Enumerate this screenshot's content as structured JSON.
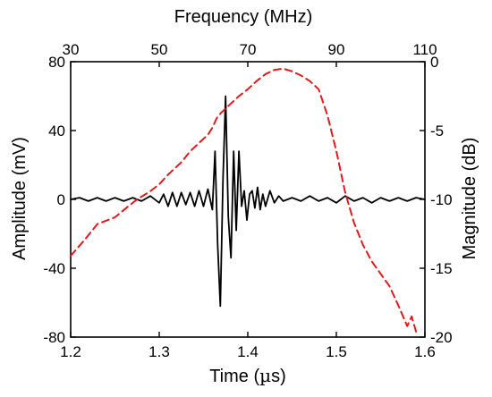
{
  "chart_data": {
    "type": "line",
    "xlabel_bottom": "Time (",
    "xlabel_bottom_symbol": "µ",
    "xlabel_bottom_suffix": "s)",
    "xlabel_top": "Frequency (MHz)",
    "ylabel_left": "Amplitude (mV)",
    "ylabel_right": "Magnitude (dB)",
    "x_bottom_range": [
      1.2,
      1.6
    ],
    "x_bottom_ticks": [
      1.2,
      1.3,
      1.4,
      1.5,
      1.6
    ],
    "x_bottom_tick_labels": [
      "1.2",
      "1.3",
      "1.4",
      "1.5",
      "1.6"
    ],
    "x_top_range": [
      30,
      110
    ],
    "x_top_ticks": [
      30,
      50,
      70,
      90,
      110
    ],
    "x_top_tick_labels": [
      "30",
      "50",
      "70",
      "90",
      "110"
    ],
    "y_left_range": [
      -80,
      80
    ],
    "y_left_ticks": [
      -80,
      -40,
      0,
      40,
      80
    ],
    "y_left_tick_labels": [
      "-80",
      "-40",
      "0",
      "40",
      "80"
    ],
    "y_right_range": [
      -20,
      0
    ],
    "y_right_ticks": [
      -20,
      -15,
      -10,
      -5,
      0
    ],
    "y_right_tick_labels": [
      "-20",
      "-15",
      "-10",
      "-5",
      "0"
    ],
    "grid": false,
    "series": [
      {
        "axis": "bottom-left",
        "color": "#000000",
        "style": "solid",
        "x": [
          1.2,
          1.21,
          1.22,
          1.23,
          1.24,
          1.25,
          1.26,
          1.27,
          1.28,
          1.29,
          1.3,
          1.305,
          1.31,
          1.315,
          1.32,
          1.325,
          1.33,
          1.335,
          1.34,
          1.345,
          1.35,
          1.355,
          1.36,
          1.363,
          1.366,
          1.369,
          1.372,
          1.375,
          1.378,
          1.381,
          1.384,
          1.387,
          1.39,
          1.393,
          1.396,
          1.399,
          1.402,
          1.405,
          1.408,
          1.411,
          1.414,
          1.417,
          1.42,
          1.425,
          1.43,
          1.435,
          1.44,
          1.45,
          1.46,
          1.47,
          1.48,
          1.49,
          1.5,
          1.51,
          1.52,
          1.53,
          1.54,
          1.55,
          1.56,
          1.57,
          1.58,
          1.59,
          1.6
        ],
        "y": [
          0,
          1,
          -1,
          1,
          -1,
          1,
          -1,
          1,
          -1,
          2,
          -2,
          3,
          -4,
          4,
          -4,
          4,
          -3,
          4,
          -4,
          5,
          -4,
          6,
          -6,
          28,
          -26,
          -62,
          12,
          60,
          -10,
          -34,
          28,
          -18,
          28,
          -4,
          5,
          -12,
          3,
          5,
          -5,
          7,
          -6,
          3,
          -4,
          5,
          -2,
          2,
          -1,
          1,
          -1,
          2,
          -1,
          1,
          -2,
          2,
          -1,
          1,
          -2,
          1,
          -1,
          1,
          -1,
          1,
          0
        ]
      },
      {
        "axis": "top-right",
        "color": "#e31a1c",
        "style": "dashed",
        "x": [
          30,
          33,
          36,
          40,
          43,
          45,
          48,
          50,
          52,
          55,
          57,
          59,
          61,
          62,
          63,
          64,
          66,
          68,
          70,
          72,
          74,
          76,
          78,
          80,
          82,
          84,
          86,
          88,
          90,
          92,
          94,
          96,
          98,
          100,
          102,
          104,
          106,
          107,
          108
        ],
        "y": [
          -14.1,
          -13,
          -11.8,
          -11.3,
          -10.5,
          -10,
          -9.4,
          -8.9,
          -8.2,
          -7.3,
          -6.5,
          -5.9,
          -5.3,
          -4.8,
          -4.1,
          -3.7,
          -3.1,
          -2.5,
          -2.0,
          -1.4,
          -0.9,
          -0.6,
          -0.5,
          -0.7,
          -1.0,
          -1.4,
          -2.0,
          -3.9,
          -6.5,
          -9.5,
          -11.7,
          -13.3,
          -14.5,
          -15.4,
          -16.3,
          -17.7,
          -19.2,
          -18.5,
          -19.6
        ]
      }
    ]
  }
}
